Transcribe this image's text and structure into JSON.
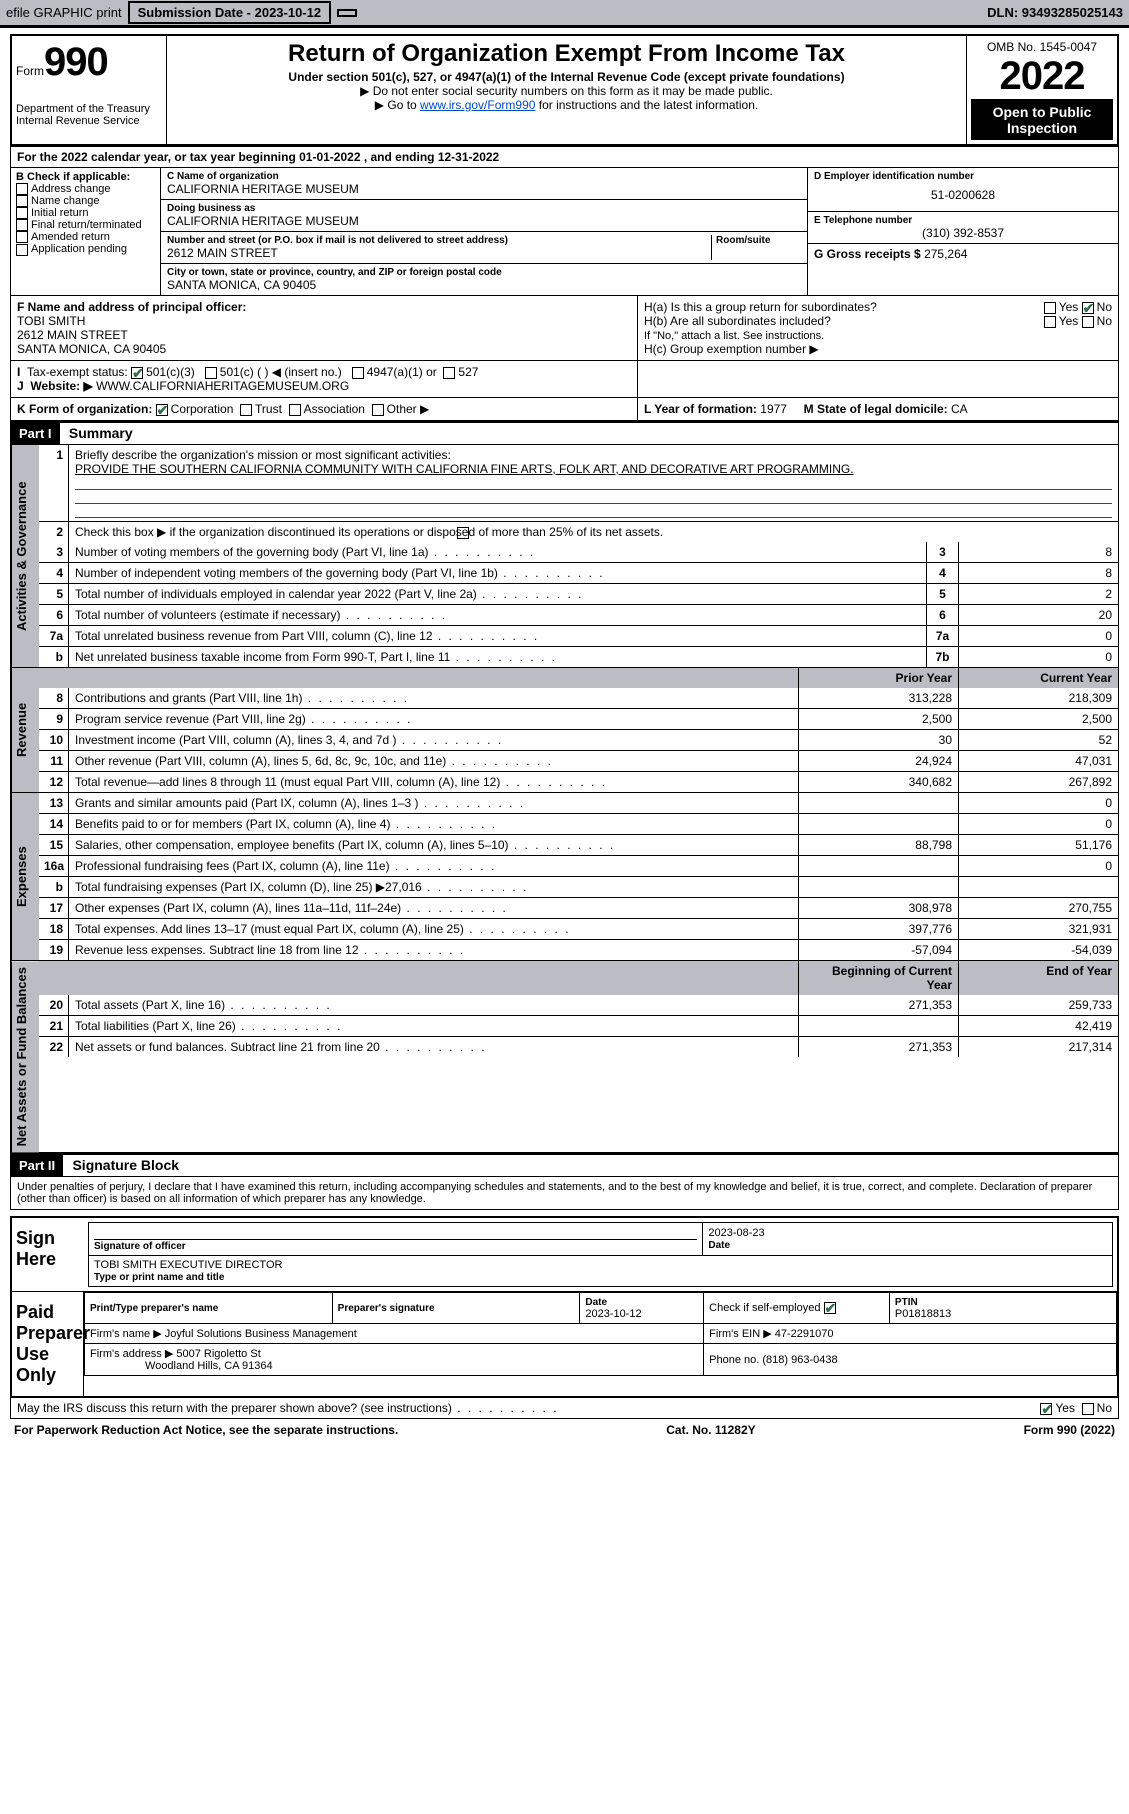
{
  "topbar": {
    "efile": "efile GRAPHIC print",
    "submission_label": "Submission Date - 2023-10-12",
    "dln": "DLN: 93493285025143"
  },
  "header": {
    "form_label": "Form",
    "form_number": "990",
    "dept": "Department of the Treasury\nInternal Revenue Service",
    "title": "Return of Organization Exempt From Income Tax",
    "subtitle": "Under section 501(c), 527, or 4947(a)(1) of the Internal Revenue Code (except private foundations)",
    "note1": "▶ Do not enter social security numbers on this form as it may be made public.",
    "note2_pre": "▶ Go to ",
    "note2_link": "www.irs.gov/Form990",
    "note2_post": " for instructions and the latest information.",
    "omb": "OMB No. 1545-0047",
    "year": "2022",
    "open": "Open to Public\nInspection"
  },
  "period": "For the 2022 calendar year, or tax year beginning 01-01-2022  , and ending 12-31-2022",
  "boxB": {
    "label": "B Check if applicable:",
    "opts": [
      "Address change",
      "Name change",
      "Initial return",
      "Final return/terminated",
      "Amended return",
      "Application pending"
    ]
  },
  "boxC": {
    "name_label": "C Name of organization",
    "name": "CALIFORNIA HERITAGE MUSEUM",
    "dba_label": "Doing business as",
    "dba": "CALIFORNIA HERITAGE MUSEUM",
    "street_label": "Number and street (or P.O. box if mail is not delivered to street address)",
    "street": "2612 MAIN STREET",
    "room_label": "Room/suite",
    "city_label": "City or town, state or province, country, and ZIP or foreign postal code",
    "city": "SANTA MONICA, CA  90405"
  },
  "boxD": {
    "label": "D Employer identification number",
    "value": "51-0200628"
  },
  "boxE": {
    "label": "E Telephone number",
    "value": "(310) 392-8537"
  },
  "boxG": {
    "label": "G Gross receipts $",
    "value": "275,264"
  },
  "boxF": {
    "label": "F Name and address of principal officer:",
    "name": "TOBI SMITH",
    "addr1": "2612 MAIN STREET",
    "addr2": "SANTA MONICA, CA  90405"
  },
  "boxH": {
    "ha": "H(a)  Is this a group return for subordinates?",
    "hb": "H(b)  Are all subordinates included?",
    "hb_note": "If \"No,\" attach a list. See instructions.",
    "hc": "H(c)  Group exemption number ▶"
  },
  "boxI": {
    "label": "Tax-exempt status:",
    "opts": [
      "501(c)(3)",
      "501(c) (  ) ◀ (insert no.)",
      "4947(a)(1) or",
      "527"
    ]
  },
  "boxJ": {
    "label": "Website: ▶",
    "value": "WWW.CALIFORNIAHERITAGEMUSEUM.ORG"
  },
  "boxK": {
    "label": "K Form of organization:",
    "opts": [
      "Corporation",
      "Trust",
      "Association",
      "Other ▶"
    ]
  },
  "boxL": {
    "label": "L Year of formation:",
    "value": "1977"
  },
  "boxM": {
    "label": "M State of legal domicile:",
    "value": "CA"
  },
  "part1": {
    "hd": "Part I",
    "title": "Summary",
    "line1_label": "Briefly describe the organization's mission or most significant activities:",
    "line1_text": "PROVIDE THE SOUTHERN CALIFORNIA COMMUNITY WITH CALIFORNIA FINE ARTS, FOLK ART, AND DECORATIVE ART PROGRAMMING.",
    "line2": "Check this box ▶       if the organization discontinued its operations or disposed of more than 25% of its net assets.",
    "rows_gov": [
      {
        "n": "3",
        "t": "Number of voting members of the governing body (Part VI, line 1a)",
        "ln": "3",
        "v": "8"
      },
      {
        "n": "4",
        "t": "Number of independent voting members of the governing body (Part VI, line 1b)",
        "ln": "4",
        "v": "8"
      },
      {
        "n": "5",
        "t": "Total number of individuals employed in calendar year 2022 (Part V, line 2a)",
        "ln": "5",
        "v": "2"
      },
      {
        "n": "6",
        "t": "Total number of volunteers (estimate if necessary)",
        "ln": "6",
        "v": "20"
      },
      {
        "n": "7a",
        "t": "Total unrelated business revenue from Part VIII, column (C), line 12",
        "ln": "7a",
        "v": "0"
      },
      {
        "n": "b",
        "t": "Net unrelated business taxable income from Form 990-T, Part I, line 11",
        "ln": "7b",
        "v": "0"
      }
    ],
    "col_hd1": "Prior Year",
    "col_hd2": "Current Year",
    "rows_rev": [
      {
        "n": "8",
        "t": "Contributions and grants (Part VIII, line 1h)",
        "p": "313,228",
        "c": "218,309"
      },
      {
        "n": "9",
        "t": "Program service revenue (Part VIII, line 2g)",
        "p": "2,500",
        "c": "2,500"
      },
      {
        "n": "10",
        "t": "Investment income (Part VIII, column (A), lines 3, 4, and 7d )",
        "p": "30",
        "c": "52"
      },
      {
        "n": "11",
        "t": "Other revenue (Part VIII, column (A), lines 5, 6d, 8c, 9c, 10c, and 11e)",
        "p": "24,924",
        "c": "47,031"
      },
      {
        "n": "12",
        "t": "Total revenue—add lines 8 through 11 (must equal Part VIII, column (A), line 12)",
        "p": "340,682",
        "c": "267,892"
      }
    ],
    "rows_exp": [
      {
        "n": "13",
        "t": "Grants and similar amounts paid (Part IX, column (A), lines 1–3 )",
        "p": "",
        "c": "0"
      },
      {
        "n": "14",
        "t": "Benefits paid to or for members (Part IX, column (A), line 4)",
        "p": "",
        "c": "0"
      },
      {
        "n": "15",
        "t": "Salaries, other compensation, employee benefits (Part IX, column (A), lines 5–10)",
        "p": "88,798",
        "c": "51,176"
      },
      {
        "n": "16a",
        "t": "Professional fundraising fees (Part IX, column (A), line 11e)",
        "p": "",
        "c": "0"
      },
      {
        "n": "b",
        "t": "Total fundraising expenses (Part IX, column (D), line 25) ▶27,016",
        "p": "",
        "c": ""
      },
      {
        "n": "17",
        "t": "Other expenses (Part IX, column (A), lines 11a–11d, 11f–24e)",
        "p": "308,978",
        "c": "270,755"
      },
      {
        "n": "18",
        "t": "Total expenses. Add lines 13–17 (must equal Part IX, column (A), line 25)",
        "p": "397,776",
        "c": "321,931"
      },
      {
        "n": "19",
        "t": "Revenue less expenses. Subtract line 18 from line 12",
        "p": "-57,094",
        "c": "-54,039"
      }
    ],
    "col_hd3": "Beginning of Current Year",
    "col_hd4": "End of Year",
    "rows_net": [
      {
        "n": "20",
        "t": "Total assets (Part X, line 16)",
        "p": "271,353",
        "c": "259,733"
      },
      {
        "n": "21",
        "t": "Total liabilities (Part X, line 26)",
        "p": "",
        "c": "42,419"
      },
      {
        "n": "22",
        "t": "Net assets or fund balances. Subtract line 21 from line 20",
        "p": "271,353",
        "c": "217,314"
      }
    ]
  },
  "part2": {
    "hd": "Part II",
    "title": "Signature Block",
    "penalty": "Under penalties of perjury, I declare that I have examined this return, including accompanying schedules and statements, and to the best of my knowledge and belief, it is true, correct, and complete. Declaration of preparer (other than officer) is based on all information of which preparer has any knowledge.",
    "sign_here": "Sign Here",
    "sig_officer": "Signature of officer",
    "sig_date": "2023-08-23",
    "date_label": "Date",
    "officer_name": "TOBI SMITH  EXECUTIVE DIRECTOR",
    "name_label": "Type or print name and title",
    "paid_label": "Paid Preparer Use Only",
    "prep_name_label": "Print/Type preparer's name",
    "prep_sig_label": "Preparer's signature",
    "prep_date_label": "Date",
    "prep_date": "2023-10-12",
    "self_emp": "Check        if self-employed",
    "ptin_label": "PTIN",
    "ptin": "P01818813",
    "firm_name_label": "Firm's name   ▶",
    "firm_name": "Joyful Solutions Business Management",
    "firm_ein_label": "Firm's EIN ▶",
    "firm_ein": "47-2291070",
    "firm_addr_label": "Firm's address ▶",
    "firm_addr1": "5007 Rigoletto St",
    "firm_addr2": "Woodland Hills, CA  91364",
    "phone_label": "Phone no.",
    "phone": "(818) 963-0438",
    "discuss": "May the IRS discuss this return with the preparer shown above? (see instructions)"
  },
  "footer": {
    "left": "For Paperwork Reduction Act Notice, see the separate instructions.",
    "mid": "Cat. No. 11282Y",
    "right": "Form 990 (2022)"
  },
  "sidebars": {
    "gov": "Activities & Governance",
    "rev": "Revenue",
    "exp": "Expenses",
    "net": "Net Assets or\nFund Balances"
  }
}
